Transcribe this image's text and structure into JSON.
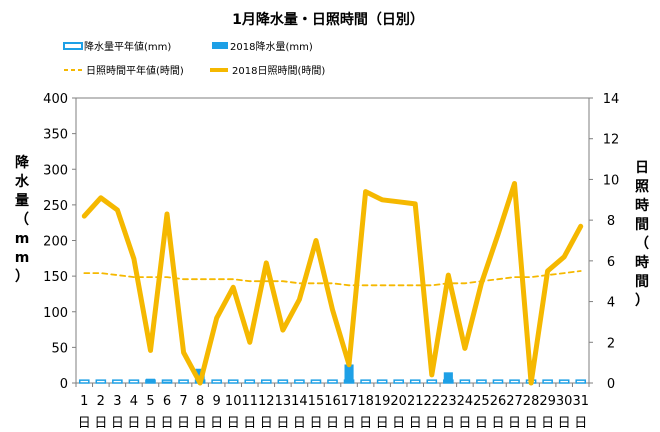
{
  "chart_data": {
    "type": "bar",
    "title": "1月降水量・日照時間（日別）",
    "ylabel_left": "降水量（mm）",
    "ylabel_right": "日照時間（時間）",
    "ylim_left": [
      0,
      400
    ],
    "yticks_left": [
      0,
      50,
      100,
      150,
      200,
      250,
      300,
      350,
      400
    ],
    "ylim_right": [
      0,
      14
    ],
    "yticks_right": [
      0,
      2,
      4,
      6,
      8,
      10,
      12,
      14
    ],
    "grid": false,
    "legend_position": "top",
    "categories": [
      "1",
      "2",
      "3",
      "4",
      "5",
      "6",
      "7",
      "8",
      "9",
      "10",
      "11",
      "12",
      "13",
      "14",
      "15",
      "16",
      "17",
      "18",
      "19",
      "20",
      "21",
      "22",
      "23",
      "24",
      "25",
      "26",
      "27",
      "28",
      "29",
      "30",
      "31"
    ],
    "day_suffix": "日",
    "series": [
      {
        "name": "降水量平年値(mm)",
        "type": "bar",
        "axis": "left",
        "color": "#1ea0e6",
        "style": "outlined",
        "values": [
          4,
          4,
          4,
          4,
          4,
          4,
          4,
          4,
          4,
          4,
          4,
          4,
          4,
          4,
          4,
          4,
          4,
          4,
          4,
          4,
          4,
          4,
          4,
          4,
          4,
          4,
          4,
          4,
          4,
          4,
          4
        ]
      },
      {
        "name": "2018降水量(mm)",
        "type": "bar",
        "axis": "left",
        "color": "#1ea0e6",
        "style": "filled",
        "values": [
          0,
          0,
          0,
          0,
          6,
          2,
          0,
          20,
          0,
          0,
          0,
          0,
          0,
          0,
          0,
          0,
          26,
          0,
          0,
          0,
          0,
          0,
          15,
          0,
          0,
          0,
          0,
          0,
          0,
          0,
          0
        ]
      },
      {
        "name": "日照時間平年値(時間)",
        "type": "line",
        "axis": "right",
        "color": "#f5b800",
        "style": "dashed",
        "values": [
          5.4,
          5.4,
          5.3,
          5.2,
          5.2,
          5.2,
          5.1,
          5.1,
          5.1,
          5.1,
          5.0,
          5.0,
          5.0,
          4.9,
          4.9,
          4.9,
          4.8,
          4.8,
          4.8,
          4.8,
          4.8,
          4.8,
          4.9,
          4.9,
          5.0,
          5.1,
          5.2,
          5.2,
          5.3,
          5.4,
          5.5
        ]
      },
      {
        "name": "2018日照時間(時間)",
        "type": "line",
        "axis": "right",
        "color": "#f5b800",
        "style": "solid",
        "values": [
          8.2,
          9.1,
          8.5,
          6.1,
          1.6,
          8.3,
          1.5,
          0.0,
          3.2,
          4.7,
          2.0,
          5.9,
          2.6,
          4.1,
          7.0,
          3.6,
          0.9,
          9.4,
          9.0,
          8.9,
          8.8,
          0.4,
          5.3,
          1.7,
          4.9,
          7.3,
          9.8,
          0.0,
          5.5,
          6.2,
          7.7
        ]
      }
    ]
  }
}
